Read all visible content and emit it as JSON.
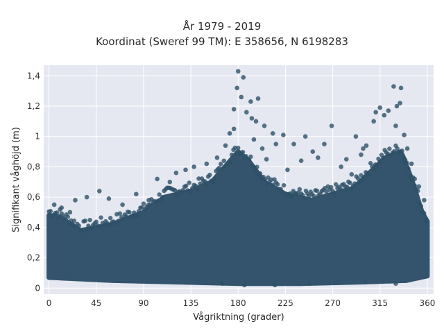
{
  "chart_data": {
    "type": "scatter",
    "title": "År 1979 - 2019",
    "subtitle": "Koordinat (Sweref 99 TM): E 358656, N 6198283",
    "xlabel": "Vågriktning (grader)",
    "ylabel": "Signifikant våghöjd (m)",
    "xlim": [
      -5,
      366
    ],
    "ylim": [
      -0.04,
      1.47
    ],
    "xticks": [
      0,
      45,
      90,
      135,
      180,
      225,
      270,
      315,
      360
    ],
    "xtick_labels": [
      "0",
      "45",
      "90",
      "135",
      "180",
      "225",
      "270",
      "315",
      "360"
    ],
    "yticks": [
      0,
      0.2,
      0.4,
      0.6,
      0.8,
      1.0,
      1.2,
      1.4
    ],
    "ytick_labels": [
      "0",
      "0,2",
      "0,4",
      "0,6",
      "0,8",
      "1",
      "1,2",
      "1,4"
    ],
    "grid": true,
    "marker_color": "#2e5068",
    "band_lower": [
      [
        0,
        0.07
      ],
      [
        30,
        0.06
      ],
      [
        60,
        0.05
      ],
      [
        120,
        0.04
      ],
      [
        180,
        0.03
      ],
      [
        240,
        0.03
      ],
      [
        300,
        0.04
      ],
      [
        340,
        0.05
      ],
      [
        360,
        0.08
      ]
    ],
    "band_upper": [
      [
        0,
        0.48
      ],
      [
        10,
        0.47
      ],
      [
        30,
        0.38
      ],
      [
        45,
        0.4
      ],
      [
        60,
        0.42
      ],
      [
        90,
        0.5
      ],
      [
        110,
        0.6
      ],
      [
        135,
        0.64
      ],
      [
        155,
        0.7
      ],
      [
        170,
        0.82
      ],
      [
        180,
        0.9
      ],
      [
        190,
        0.84
      ],
      [
        205,
        0.7
      ],
      [
        225,
        0.62
      ],
      [
        250,
        0.58
      ],
      [
        270,
        0.62
      ],
      [
        290,
        0.66
      ],
      [
        305,
        0.76
      ],
      [
        320,
        0.86
      ],
      [
        335,
        0.9
      ],
      [
        345,
        0.72
      ],
      [
        355,
        0.5
      ],
      [
        360,
        0.44
      ]
    ],
    "outliers": [
      {
        "x": 180,
        "y": 1.43
      },
      {
        "x": 185,
        "y": 1.39
      },
      {
        "x": 179,
        "y": 1.32
      },
      {
        "x": 183,
        "y": 1.26
      },
      {
        "x": 192,
        "y": 1.23
      },
      {
        "x": 199,
        "y": 1.25
      },
      {
        "x": 176,
        "y": 1.18
      },
      {
        "x": 188,
        "y": 1.16
      },
      {
        "x": 193,
        "y": 1.12
      },
      {
        "x": 197,
        "y": 1.1
      },
      {
        "x": 205,
        "y": 1.07
      },
      {
        "x": 213,
        "y": 1.02
      },
      {
        "x": 216,
        "y": 0.95
      },
      {
        "x": 223,
        "y": 1.01
      },
      {
        "x": 233,
        "y": 0.95
      },
      {
        "x": 244,
        "y": 1.0
      },
      {
        "x": 251,
        "y": 0.9
      },
      {
        "x": 262,
        "y": 0.95
      },
      {
        "x": 269,
        "y": 1.07
      },
      {
        "x": 283,
        "y": 0.85
      },
      {
        "x": 292,
        "y": 1.0
      },
      {
        "x": 297,
        "y": 0.88
      },
      {
        "x": 302,
        "y": 0.94
      },
      {
        "x": 309,
        "y": 1.1
      },
      {
        "x": 311,
        "y": 1.16
      },
      {
        "x": 315,
        "y": 1.19
      },
      {
        "x": 319,
        "y": 1.14
      },
      {
        "x": 323,
        "y": 1.17
      },
      {
        "x": 328,
        "y": 1.33
      },
      {
        "x": 335,
        "y": 1.32
      },
      {
        "x": 331,
        "y": 1.2
      },
      {
        "x": 334,
        "y": 1.22
      },
      {
        "x": 330,
        "y": 1.07
      },
      {
        "x": 338,
        "y": 1.01
      },
      {
        "x": 341,
        "y": 0.92
      },
      {
        "x": 345,
        "y": 0.82
      },
      {
        "x": 348,
        "y": 0.72
      },
      {
        "x": 352,
        "y": 0.67
      },
      {
        "x": 357,
        "y": 0.58
      },
      {
        "x": 5,
        "y": 0.55
      },
      {
        "x": 12,
        "y": 0.53
      },
      {
        "x": 20,
        "y": 0.5
      },
      {
        "x": 25,
        "y": 0.58
      },
      {
        "x": 36,
        "y": 0.6
      },
      {
        "x": 48,
        "y": 0.64
      },
      {
        "x": 57,
        "y": 0.59
      },
      {
        "x": 70,
        "y": 0.55
      },
      {
        "x": 83,
        "y": 0.62
      },
      {
        "x": 95,
        "y": 0.58
      },
      {
        "x": 103,
        "y": 0.72
      },
      {
        "x": 115,
        "y": 0.7
      },
      {
        "x": 121,
        "y": 0.76
      },
      {
        "x": 130,
        "y": 0.78
      },
      {
        "x": 138,
        "y": 0.8
      },
      {
        "x": 150,
        "y": 0.82
      },
      {
        "x": 160,
        "y": 0.86
      },
      {
        "x": 168,
        "y": 0.94
      },
      {
        "x": 172,
        "y": 1.02
      },
      {
        "x": 176,
        "y": 1.05
      },
      {
        "x": 207,
        "y": 0.85
      },
      {
        "x": 227,
        "y": 0.78
      },
      {
        "x": 240,
        "y": 0.84
      },
      {
        "x": 256,
        "y": 0.86
      },
      {
        "x": 278,
        "y": 0.8
      },
      {
        "x": 288,
        "y": 0.75
      },
      {
        "x": 299,
        "y": 0.92
      },
      {
        "x": 195,
        "y": 0.98
      },
      {
        "x": 203,
        "y": 0.92
      },
      {
        "x": 186,
        "y": 0.02
      },
      {
        "x": 215,
        "y": 0.02
      },
      {
        "x": 248,
        "y": 0.03
      },
      {
        "x": 301,
        "y": 0.04
      },
      {
        "x": 330,
        "y": 0.03
      },
      {
        "x": 165,
        "y": 0.03
      }
    ]
  }
}
